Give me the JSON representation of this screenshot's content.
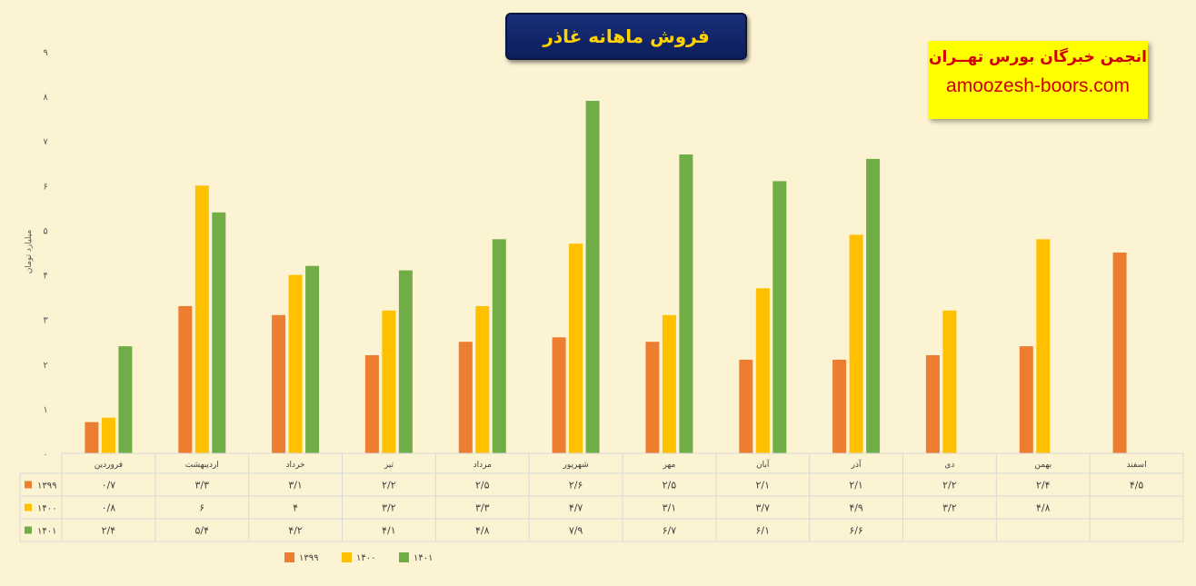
{
  "title": "فروش ماهانه غاذر",
  "brand": {
    "name": "انجمن خبرگان بورس تهــران",
    "url": "amoozesh-boors.com"
  },
  "colors": {
    "s1399": "#ed7d31",
    "s1400": "#ffc000",
    "s1401": "#70ad47"
  },
  "chart_data": {
    "type": "bar",
    "title": "فروش ماهانه غاذر",
    "ylabel": "میلیارد تومان",
    "ylim": [
      0,
      9
    ],
    "yticks": [
      "۰",
      "۱",
      "۲",
      "۳",
      "۴",
      "۵",
      "۶",
      "۷",
      "۸",
      "۹"
    ],
    "categories": [
      "فروردین",
      "اردیبهشت",
      "خرداد",
      "تیر",
      "مرداد",
      "شهریور",
      "مهر",
      "آبان",
      "آذر",
      "دی",
      "بهمن",
      "اسفند"
    ],
    "series": [
      {
        "name": "۱۳۹۹",
        "table_name": "۱۳۹۹",
        "color": "#ed7d31",
        "values": [
          0.7,
          3.3,
          3.1,
          2.2,
          2.5,
          2.6,
          2.5,
          2.1,
          2.1,
          2.2,
          2.4,
          4.5
        ],
        "labels": [
          "۰/۷",
          "۳/۳",
          "۳/۱",
          "۲/۲",
          "۲/۵",
          "۲/۶",
          "۲/۵",
          "۲/۱",
          "۲/۱",
          "۲/۲",
          "۲/۴",
          "۴/۵"
        ]
      },
      {
        "name": "۱۴۰۰",
        "table_name": "۱۴۰۰",
        "color": "#ffc000",
        "values": [
          0.8,
          6,
          4,
          3.2,
          3.3,
          4.7,
          3.1,
          3.7,
          4.9,
          3.2,
          4.8,
          null
        ],
        "labels": [
          "۰/۸",
          "۶",
          "۴",
          "۳/۲",
          "۳/۳",
          "۴/۷",
          "۳/۱",
          "۳/۷",
          "۴/۹",
          "۳/۲",
          "۴/۸",
          ""
        ]
      },
      {
        "name": "۱۴۰۱",
        "table_name": "۱۴۰۱",
        "color": "#70ad47",
        "values": [
          2.4,
          5.4,
          4.2,
          4.1,
          4.8,
          7.9,
          6.7,
          6.1,
          6.6,
          null,
          null,
          null
        ],
        "labels": [
          "۲/۴",
          "۵/۴",
          "۴/۲",
          "۴/۱",
          "۴/۸",
          "۷/۹",
          "۶/۷",
          "۶/۱",
          "۶/۶",
          "",
          "",
          ""
        ]
      }
    ],
    "grid": false,
    "legend_position": "bottom",
    "data_table": true
  }
}
